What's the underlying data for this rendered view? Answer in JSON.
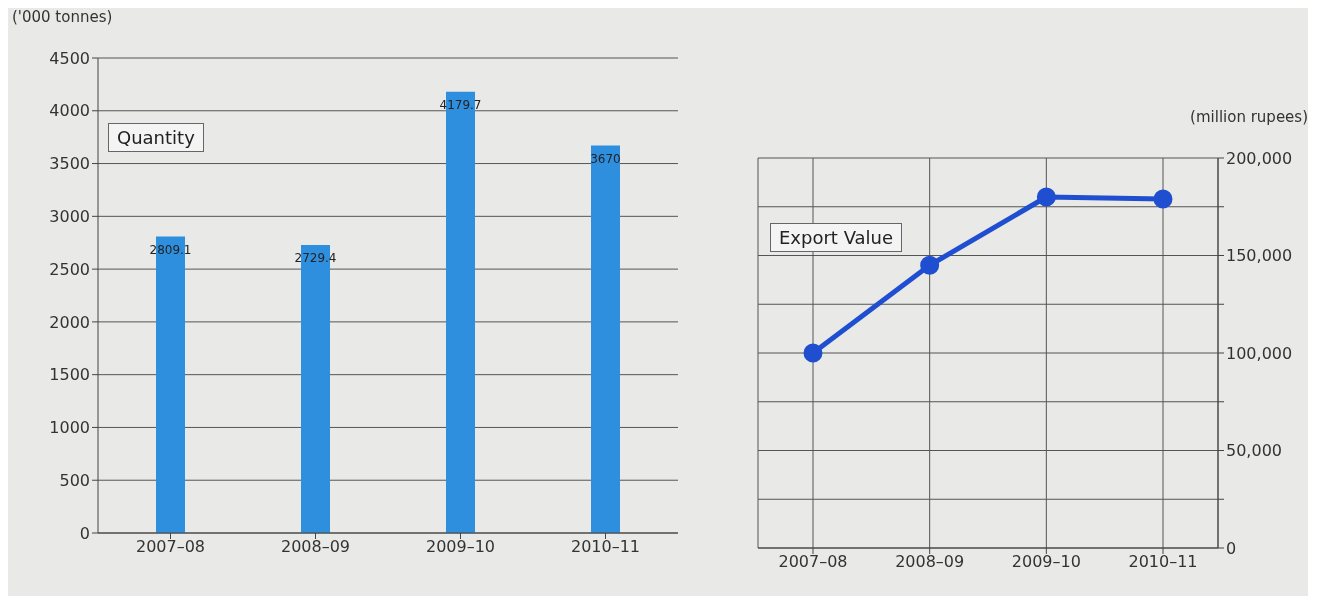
{
  "chart_data": [
    {
      "type": "bar",
      "ylabel": "('000 tonnes)",
      "categories": [
        "2007–08",
        "2008–09",
        "2009–10",
        "2010–11"
      ],
      "series": [
        {
          "color": "#2f8fdf",
          "values": [
            2809.1,
            2729.4,
            4179.7,
            3670
          ]
        }
      ],
      "ylim": [
        0,
        4500
      ],
      "yticks": [
        0,
        500,
        1000,
        1500,
        2000,
        2500,
        3000,
        3500,
        4000,
        4500
      ],
      "grid": "y",
      "data_labels": true,
      "annotations": [
        "Quantity"
      ]
    },
    {
      "type": "line",
      "y2label": "(million rupees)",
      "categories": [
        "2007–08",
        "2008–09",
        "2009–10",
        "2010–11"
      ],
      "series": [
        {
          "color": "#1f4fd0",
          "values": [
            100000,
            145000,
            180000,
            179000
          ],
          "axis": "y2"
        }
      ],
      "y2lim": [
        0,
        200000
      ],
      "y2ticks": [
        0,
        {
          "value": 25000,
          "label": null
        },
        "50,000",
        {
          "value": 75000,
          "label": null
        },
        {
          "value": 100000,
          "label": "100,000"
        },
        {
          "value": 125000,
          "label": null
        },
        {
          "value": 150000,
          "label": "150,000"
        },
        {
          "value": 175000,
          "label": null
        },
        {
          "value": 200000,
          "label": "200,000"
        }
      ],
      "grid": true,
      "marker": "circle",
      "line_style": "solid",
      "annotations": [
        "Export Value"
      ]
    }
  ]
}
